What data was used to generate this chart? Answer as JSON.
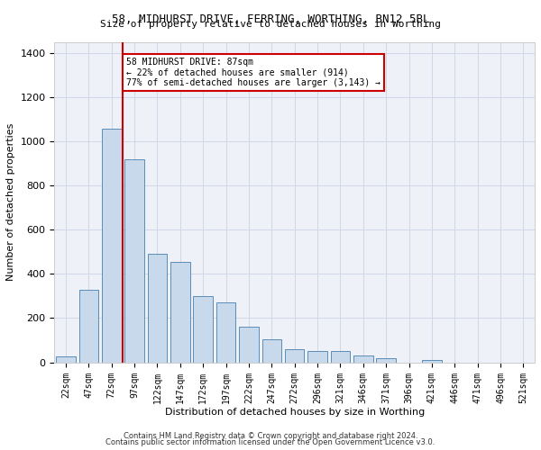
{
  "title1": "58, MIDHURST DRIVE, FERRING, WORTHING, BN12 5BL",
  "title2": "Size of property relative to detached houses in Worthing",
  "xlabel": "Distribution of detached houses by size in Worthing",
  "ylabel": "Number of detached properties",
  "categories": [
    "22sqm",
    "47sqm",
    "72sqm",
    "97sqm",
    "122sqm",
    "147sqm",
    "172sqm",
    "197sqm",
    "222sqm",
    "247sqm",
    "272sqm",
    "296sqm",
    "321sqm",
    "346sqm",
    "371sqm",
    "396sqm",
    "421sqm",
    "446sqm",
    "471sqm",
    "496sqm",
    "521sqm"
  ],
  "values": [
    28,
    330,
    1060,
    920,
    490,
    455,
    300,
    270,
    160,
    105,
    60,
    50,
    50,
    30,
    18,
    0,
    12,
    0,
    0,
    0,
    0
  ],
  "bar_color": "#c9d9ec",
  "bar_edge_color": "#5b8db8",
  "vline_color": "#cc0000",
  "vline_pos": 2.5,
  "annotation_text": "58 MIDHURST DRIVE: 87sqm\n← 22% of detached houses are smaller (914)\n77% of semi-detached houses are larger (3,143) →",
  "annotation_box_color": "#ffffff",
  "annotation_box_edge": "#cc0000",
  "ylim": [
    0,
    1450
  ],
  "yticks": [
    0,
    200,
    400,
    600,
    800,
    1000,
    1200,
    1400
  ],
  "footnote1": "Contains HM Land Registry data © Crown copyright and database right 2024.",
  "footnote2": "Contains public sector information licensed under the Open Government Licence v3.0.",
  "grid_color": "#d0d8e8",
  "bg_color": "#eef2f8",
  "title1_fontsize": 9,
  "title2_fontsize": 8,
  "ylabel_fontsize": 8,
  "xlabel_fontsize": 8,
  "tick_fontsize": 7,
  "footnote_fontsize": 6
}
